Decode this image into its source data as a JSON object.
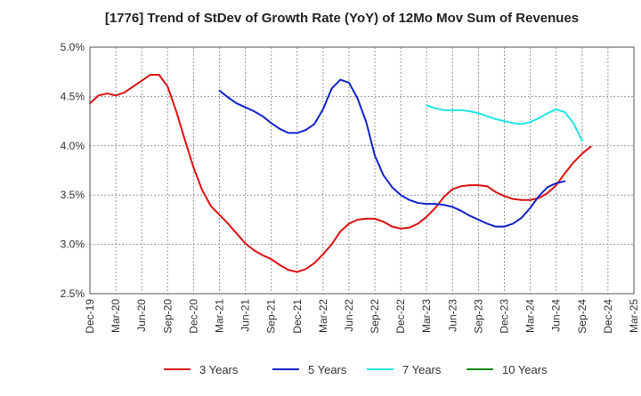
{
  "chart_data": {
    "type": "line",
    "title": "[1776]  Trend of StDev of Growth Rate (YoY) of 12Mo Mov Sum of Revenues",
    "xlabel": "",
    "ylabel": "",
    "ylim": [
      2.5,
      5.0
    ],
    "yticks": [
      2.5,
      3.0,
      3.5,
      4.0,
      4.5,
      5.0
    ],
    "ytick_labels": [
      "2.5%",
      "3.0%",
      "3.5%",
      "4.0%",
      "4.5%",
      "5.0%"
    ],
    "x_start": "Dec-19",
    "x_end": "Mar-25",
    "x_tick_labels": [
      "Dec-19",
      "Mar-20",
      "Jun-20",
      "Sep-20",
      "Dec-20",
      "Mar-21",
      "Jun-21",
      "Sep-21",
      "Dec-21",
      "Mar-22",
      "Jun-22",
      "Sep-22",
      "Dec-22",
      "Mar-23",
      "Jun-23",
      "Sep-23",
      "Dec-23",
      "Mar-24",
      "Jun-24",
      "Sep-24",
      "Dec-24",
      "Mar-25"
    ],
    "grid": true,
    "legend_position": "bottom",
    "series": [
      {
        "name": "3 Years",
        "color": "#dd1111",
        "start": "Dec-19",
        "values": [
          4.43,
          4.51,
          4.53,
          4.51,
          4.54,
          4.6,
          4.66,
          4.72,
          4.72,
          4.6,
          4.35,
          4.06,
          3.78,
          3.55,
          3.39,
          3.3,
          3.21,
          3.11,
          3.01,
          2.94,
          2.89,
          2.85,
          2.79,
          2.74,
          2.72,
          2.75,
          2.81,
          2.9,
          3.0,
          3.13,
          3.21,
          3.25,
          3.26,
          3.26,
          3.23,
          3.18,
          3.16,
          3.17,
          3.21,
          3.28,
          3.37,
          3.48,
          3.56,
          3.59,
          3.6,
          3.6,
          3.59,
          3.53,
          3.49,
          3.46,
          3.45,
          3.45,
          3.47,
          3.52,
          3.6,
          3.72,
          3.83,
          3.92,
          3.99
        ]
      },
      {
        "name": "5 Years",
        "color": "#1122cc",
        "start": "Mar-21",
        "values": [
          4.56,
          4.49,
          4.43,
          4.39,
          4.35,
          4.3,
          4.23,
          4.17,
          4.13,
          4.13,
          4.16,
          4.22,
          4.37,
          4.58,
          4.67,
          4.64,
          4.48,
          4.24,
          3.9,
          3.7,
          3.58,
          3.5,
          3.45,
          3.42,
          3.41,
          3.41,
          3.4,
          3.38,
          3.34,
          3.29,
          3.25,
          3.21,
          3.18,
          3.18,
          3.21,
          3.27,
          3.37,
          3.49,
          3.58,
          3.62,
          3.64
        ]
      },
      {
        "name": "7 Years",
        "color": "#22e5e5",
        "start": "Mar-23",
        "values": [
          4.41,
          4.38,
          4.36,
          4.36,
          4.36,
          4.35,
          4.33,
          4.3,
          4.27,
          4.25,
          4.23,
          4.22,
          4.24,
          4.28,
          4.33,
          4.37,
          4.34,
          4.23,
          4.05
        ]
      },
      {
        "name": "10 Years",
        "color": "#118811",
        "start": "Dec-24",
        "values": []
      }
    ]
  }
}
